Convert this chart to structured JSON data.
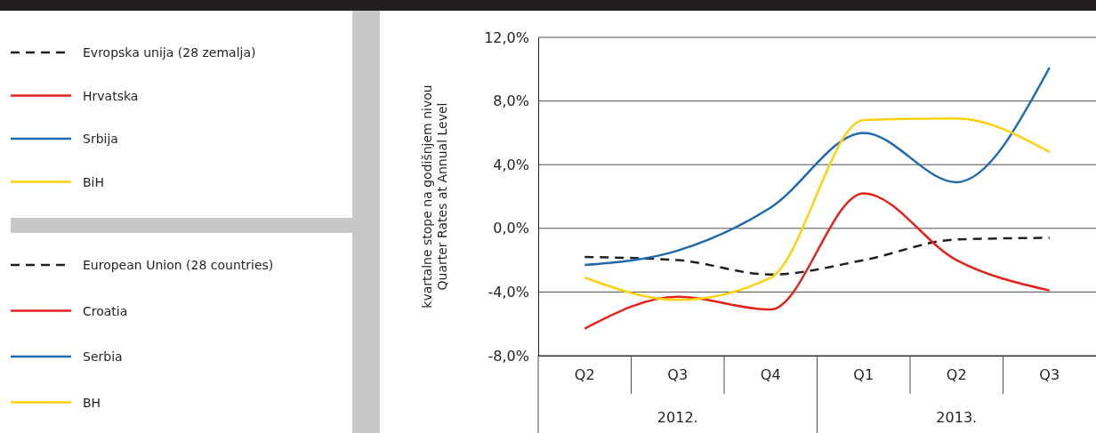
{
  "chart_data": {
    "type": "line",
    "ylabel": "kvartalne stope na godišnjem nivou\nQuarter Rates at Annual Level",
    "categories": [
      "Q2",
      "Q3",
      "Q4",
      "Q1",
      "Q2",
      "Q3"
    ],
    "series": [
      {
        "name": "Evropska unija (28 zemalja)",
        "color": "#231f20",
        "line_style": "dashed",
        "values": [
          -1.8,
          -2.0,
          -2.9,
          -2.0,
          -0.7,
          -0.6
        ]
      },
      {
        "name": "Hrvatska",
        "color": "#e2231a",
        "values": [
          -6.3,
          -4.3,
          -5.1,
          2.2,
          -2.0,
          -3.9
        ]
      },
      {
        "name": "Srbija",
        "color": "#1f6aad",
        "values": [
          -2.3,
          -1.4,
          1.3,
          6.0,
          2.9,
          10.1
        ]
      },
      {
        "name": "BiH",
        "color": "#fcd20f",
        "values": [
          -3.1,
          -4.5,
          -3.1,
          6.8,
          6.9,
          4.8
        ]
      }
    ],
    "annotations": [
      "European Union (28 countries)",
      "Croatia",
      "Serbia",
      "BH",
      "2012.",
      "2013."
    ],
    "ylim": [
      -8,
      12
    ],
    "yticks": [
      {
        "value": -8,
        "label": "-8,0%"
      },
      {
        "value": -4,
        "label": "-4,0%"
      },
      {
        "value": 0,
        "label": "0,0%"
      },
      {
        "value": 4,
        "label": "4,0%"
      },
      {
        "value": 8,
        "label": "8,0%"
      },
      {
        "value": 12,
        "label": "12,0%"
      }
    ],
    "grid": "y",
    "legend": "left",
    "marker": "none"
  }
}
